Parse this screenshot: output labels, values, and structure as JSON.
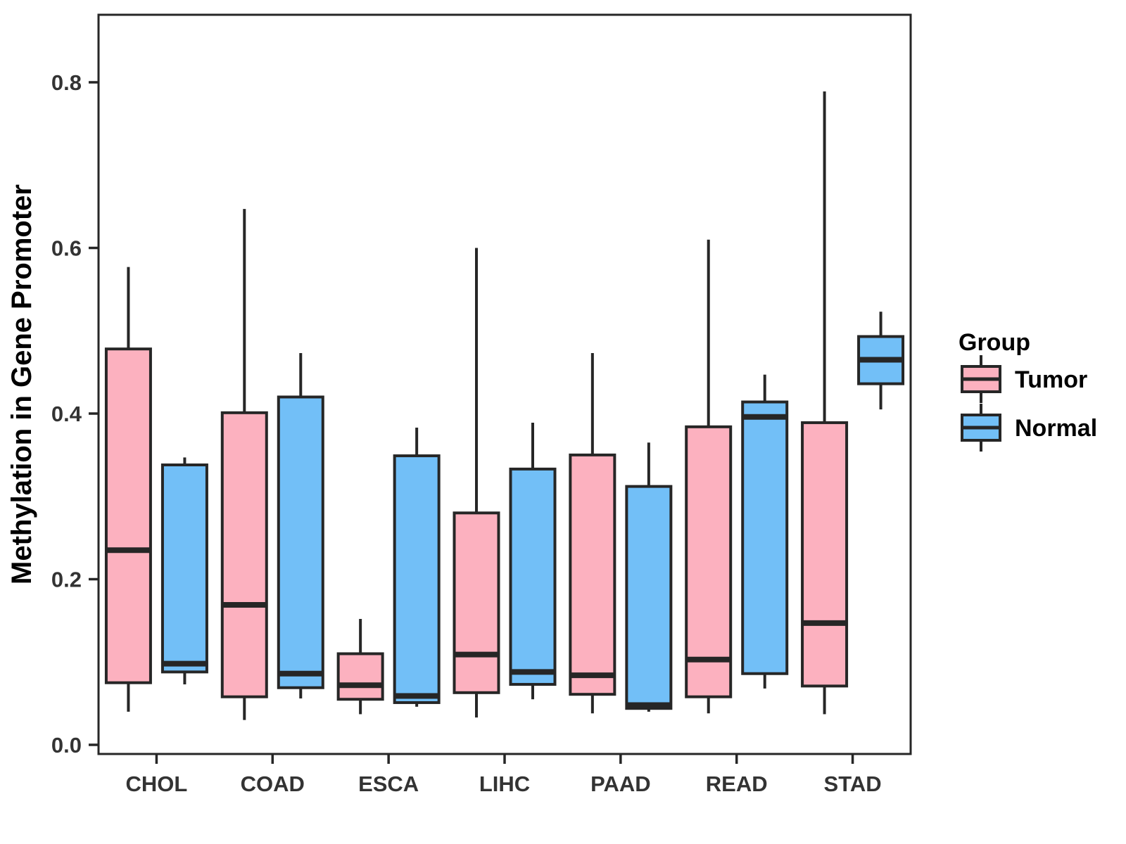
{
  "figure": {
    "background": "#FFFFFF",
    "panel_border_color": "#262626",
    "tick_label_color": "#333333",
    "axis_title_color": "#000000"
  },
  "y_axis": {
    "title": "Methylation in Gene Promoter",
    "tick_labels": [
      "0.0",
      "0.2",
      "0.4",
      "0.6",
      "0.8"
    ],
    "tick_values": [
      0,
      0.2,
      0.4,
      0.6,
      0.8
    ]
  },
  "x_axis": {
    "tick_labels": [
      "CHOL",
      "COAD",
      "ESCA",
      "LIHC",
      "PAAD",
      "READ",
      "STAD"
    ]
  },
  "legend": {
    "title": "Group",
    "items": [
      {
        "label": "Tumor",
        "color": "#FCB1BF"
      },
      {
        "label": "Normal",
        "color": "#72BFF7"
      }
    ]
  },
  "chart_data": {
    "type": "box",
    "title": "",
    "xlabel": "",
    "ylabel": "Methylation in Gene Promoter",
    "ylim": [
      -0.01,
      0.88
    ],
    "grid": false,
    "legend_position": "right",
    "categories": [
      "CHOL",
      "COAD",
      "ESCA",
      "LIHC",
      "PAAD",
      "READ",
      "STAD"
    ],
    "series": [
      {
        "name": "Tumor",
        "color": "#FCB1BF",
        "boxes": [
          {
            "category": "CHOL",
            "min": 0.04,
            "q1": 0.075,
            "median": 0.235,
            "q3": 0.478,
            "max": 0.577
          },
          {
            "category": "COAD",
            "min": 0.03,
            "q1": 0.058,
            "median": 0.169,
            "q3": 0.401,
            "max": 0.647
          },
          {
            "category": "ESCA",
            "min": 0.037,
            "q1": 0.055,
            "median": 0.072,
            "q3": 0.11,
            "max": 0.152
          },
          {
            "category": "LIHC",
            "min": 0.033,
            "q1": 0.063,
            "median": 0.109,
            "q3": 0.28,
            "max": 0.6
          },
          {
            "category": "PAAD",
            "min": 0.038,
            "q1": 0.061,
            "median": 0.084,
            "q3": 0.35,
            "max": 0.473
          },
          {
            "category": "READ",
            "min": 0.038,
            "q1": 0.058,
            "median": 0.103,
            "q3": 0.384,
            "max": 0.61
          },
          {
            "category": "STAD",
            "min": 0.037,
            "q1": 0.071,
            "median": 0.147,
            "q3": 0.389,
            "max": 0.789
          }
        ]
      },
      {
        "name": "Normal",
        "color": "#72BFF7",
        "boxes": [
          {
            "category": "CHOL",
            "min": 0.073,
            "q1": 0.088,
            "median": 0.098,
            "q3": 0.338,
            "max": 0.347
          },
          {
            "category": "COAD",
            "min": 0.056,
            "q1": 0.069,
            "median": 0.086,
            "q3": 0.42,
            "max": 0.473
          },
          {
            "category": "ESCA",
            "min": 0.046,
            "q1": 0.051,
            "median": 0.059,
            "q3": 0.349,
            "max": 0.383
          },
          {
            "category": "LIHC",
            "min": 0.055,
            "q1": 0.073,
            "median": 0.088,
            "q3": 0.333,
            "max": 0.389
          },
          {
            "category": "PAAD",
            "min": 0.04,
            "q1": 0.044,
            "median": 0.048,
            "q3": 0.312,
            "max": 0.365
          },
          {
            "category": "READ",
            "min": 0.068,
            "q1": 0.086,
            "median": 0.396,
            "q3": 0.414,
            "max": 0.447
          },
          {
            "category": "STAD",
            "min": 0.405,
            "q1": 0.436,
            "median": 0.465,
            "q3": 0.493,
            "max": 0.523
          }
        ]
      }
    ]
  }
}
